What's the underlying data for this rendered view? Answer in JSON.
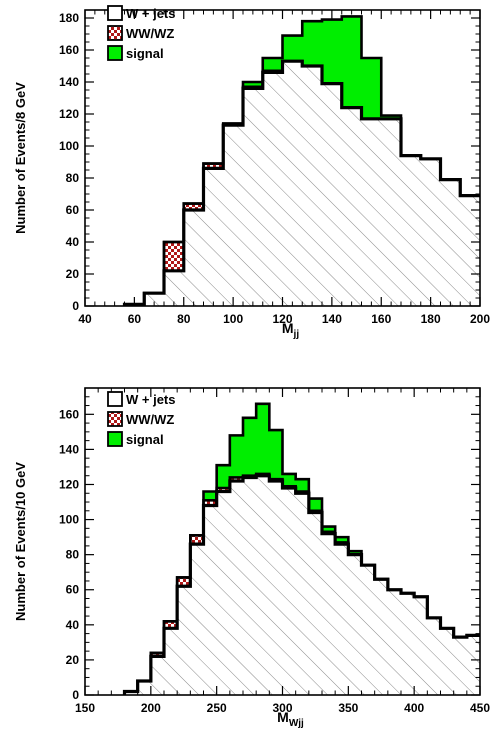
{
  "chart_data": [
    {
      "type": "area",
      "xlabel": "M",
      "xlabel_sub": "jj",
      "ylabel": "Number of Events/8 GeV",
      "xlim": [
        40,
        200
      ],
      "ylim": [
        0,
        185
      ],
      "xticks": [
        40,
        60,
        80,
        100,
        120,
        140,
        160,
        180,
        200
      ],
      "yticks": [
        0,
        20,
        40,
        60,
        80,
        100,
        120,
        140,
        160,
        180
      ],
      "bin_edges": [
        56,
        64,
        72,
        80,
        88,
        96,
        104,
        112,
        120,
        128,
        136,
        144,
        152,
        160,
        168,
        176,
        184,
        192,
        200
      ],
      "legend_position": "top-left",
      "series": [
        {
          "name": "W + jets",
          "fill": "hatch",
          "values": [
            1,
            8,
            22,
            60,
            86,
            113,
            136,
            146,
            153,
            150,
            139,
            124,
            117,
            117,
            94,
            92,
            79,
            69
          ]
        },
        {
          "name": "WW/WZ",
          "fill": "checker",
          "values": [
            0,
            0,
            18,
            4,
            3,
            1,
            1,
            1,
            0,
            0,
            0,
            0,
            0,
            0,
            0,
            0,
            0,
            0
          ]
        },
        {
          "name": "signal",
          "fill": "green",
          "values": [
            0,
            0,
            0,
            0,
            0,
            0,
            3,
            8,
            16,
            28,
            40,
            57,
            38,
            2,
            0,
            0,
            0,
            0
          ]
        }
      ]
    },
    {
      "type": "area",
      "xlabel": "M",
      "xlabel_sub": "Wjj",
      "ylabel": "Number of Events/10 GeV",
      "xlim": [
        150,
        450
      ],
      "ylim": [
        0,
        175
      ],
      "xticks": [
        150,
        200,
        250,
        300,
        350,
        400,
        450
      ],
      "yticks": [
        0,
        20,
        40,
        60,
        80,
        100,
        120,
        140,
        160
      ],
      "bin_edges": [
        180,
        190,
        200,
        210,
        220,
        230,
        240,
        250,
        260,
        270,
        280,
        290,
        300,
        310,
        320,
        330,
        340,
        350,
        360,
        370,
        380,
        390,
        400,
        410,
        420,
        430,
        440,
        450
      ],
      "legend_position": "top-left",
      "series": [
        {
          "name": "W + jets",
          "fill": "hatch",
          "values": [
            2,
            8,
            22,
            38,
            62,
            86,
            108,
            116,
            122,
            124,
            125,
            122,
            118,
            115,
            104,
            92,
            86,
            80,
            74,
            66,
            60,
            58,
            56,
            44,
            38,
            33,
            34
          ]
        },
        {
          "name": "WW/WZ",
          "fill": "checker",
          "values": [
            0,
            0,
            2,
            4,
            5,
            5,
            3,
            2,
            2,
            1,
            1,
            1,
            1,
            1,
            1,
            1,
            1,
            0,
            0,
            0,
            0,
            0,
            0,
            0,
            0,
            0,
            0
          ]
        },
        {
          "name": "signal",
          "fill": "green",
          "values": [
            0,
            0,
            0,
            0,
            0,
            0,
            5,
            13,
            24,
            33,
            40,
            28,
            7,
            7,
            7,
            3,
            3,
            2,
            0,
            0,
            0,
            0,
            0,
            0,
            0,
            0,
            0
          ]
        }
      ]
    }
  ]
}
